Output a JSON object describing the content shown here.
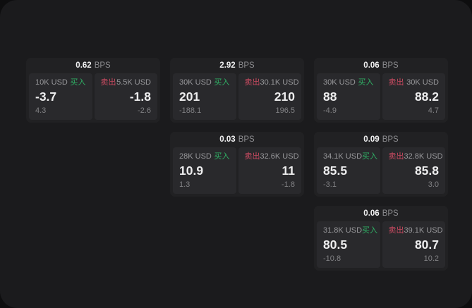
{
  "labels": {
    "buy": "买入",
    "sell": "卖出",
    "bps_unit": "BPS"
  },
  "colors": {
    "buy_accent": "#2fb065",
    "sell_accent": "#c84a60",
    "panel_background": "#1b1b1d",
    "card_background": "#212123",
    "pane_background": "#29292c"
  },
  "cards": [
    {
      "bps": "0.62",
      "row": 1,
      "col": 1,
      "buy": {
        "amount": "10K USD",
        "value": "-3.7",
        "delta": "4.3"
      },
      "sell": {
        "amount": "5.5K USD",
        "value": "-1.8",
        "delta": "-2.6"
      }
    },
    {
      "bps": "2.92",
      "row": 1,
      "col": 2,
      "buy": {
        "amount": "30K USD",
        "value": "201",
        "delta": "-188.1"
      },
      "sell": {
        "amount": "30.1K USD",
        "value": "210",
        "delta": "196.5"
      }
    },
    {
      "bps": "0.06",
      "row": 1,
      "col": 3,
      "buy": {
        "amount": "30K USD",
        "value": "88",
        "delta": "-4.9"
      },
      "sell": {
        "amount": "30K USD",
        "value": "88.2",
        "delta": "4.7"
      }
    },
    {
      "bps": "0.03",
      "row": 2,
      "col": 2,
      "buy": {
        "amount": "28K USD",
        "value": "10.9",
        "delta": "1.3"
      },
      "sell": {
        "amount": "32.6K USD",
        "value": "11",
        "delta": "-1.8"
      }
    },
    {
      "bps": "0.09",
      "row": 2,
      "col": 3,
      "buy": {
        "amount": "34.1K USD",
        "value": "85.5",
        "delta": "-3.1"
      },
      "sell": {
        "amount": "32.8K USD",
        "value": "85.8",
        "delta": "3.0"
      }
    },
    {
      "bps": "0.06",
      "row": 3,
      "col": 3,
      "buy": {
        "amount": "31.8K USD",
        "value": "80.5",
        "delta": "-10.8"
      },
      "sell": {
        "amount": "39.1K USD",
        "value": "80.7",
        "delta": "10.2"
      }
    }
  ]
}
